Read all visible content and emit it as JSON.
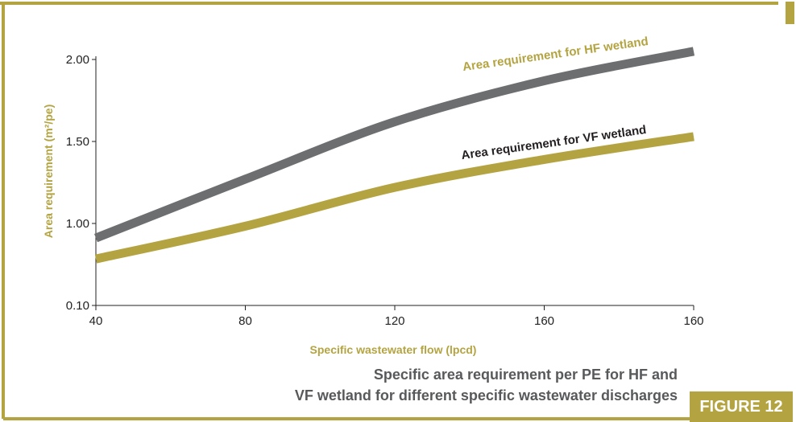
{
  "figure": {
    "caption_lines": [
      "Specific area requirement per PE for HF and",
      "VF wetland for different specific wastewater discharges"
    ],
    "badge": "FIGURE 12"
  },
  "colors": {
    "frame": "#b4a441",
    "hf_series": "#6d6e70",
    "vf_series": "#b4a441",
    "hf_label": "#b4a441",
    "vf_label": "#231f20",
    "axis_title": "#b4a441",
    "caption": "#58595b"
  },
  "chart_data": {
    "type": "line",
    "xlabel": "Specific wastewater flow (lpcd)",
    "ylabel": "Area requirement (m²/pe)",
    "x_tick_labels": [
      "40",
      "80",
      "120",
      "160",
      "160"
    ],
    "y_tick_labels": [
      "0.10",
      "1.00",
      "1.50",
      "2.00"
    ],
    "categories": [
      "40",
      "80",
      "120",
      "160",
      "160"
    ],
    "series": [
      {
        "name": "Area requirement for HF wetland",
        "values": [
          0.84,
          1.27,
          1.62,
          1.87,
          2.05
        ]
      },
      {
        "name": "Area requirement for VF wetland",
        "values": [
          0.61,
          0.97,
          1.22,
          1.39,
          1.53
        ]
      }
    ],
    "grid": false,
    "legend": "none"
  }
}
